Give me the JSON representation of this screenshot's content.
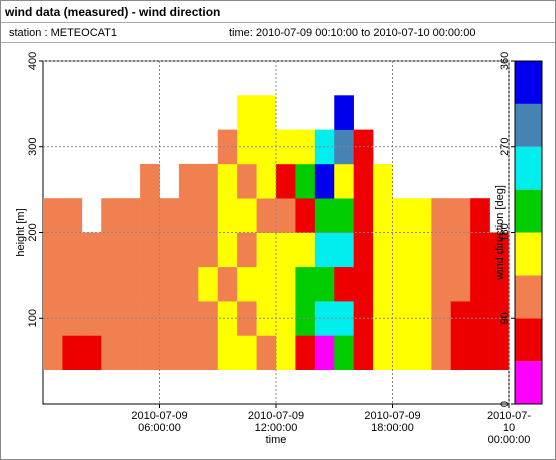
{
  "header": {
    "title": "wind data (measured) - wind direction",
    "station": "station : METEOCAT1",
    "time": "time: 2010-07-09 00:10:00 to 2010-07-10 00:00:00"
  },
  "chart_data": {
    "type": "heatmap",
    "xlabel": "time",
    "ylabel": "height [m]",
    "x": [
      0,
      1,
      2,
      3,
      4,
      5,
      6,
      7,
      8,
      9,
      10,
      11,
      12,
      13,
      14,
      15,
      16,
      17,
      18,
      19,
      20,
      21,
      22,
      23,
      24
    ],
    "heights": [
      40,
      80,
      120,
      160,
      200,
      240,
      280,
      320,
      360
    ],
    "values": [
      [
        100,
        110,
        120,
        115,
        105,
        null,
        null,
        null
      ],
      [
        80,
        115,
        120,
        110,
        100,
        null,
        null,
        null
      ],
      [
        70,
        110,
        115,
        120,
        null,
        null,
        null,
        null
      ],
      [
        110,
        120,
        105,
        115,
        110,
        null,
        null,
        null
      ],
      [
        115,
        110,
        120,
        105,
        110,
        null,
        null,
        null
      ],
      [
        110,
        115,
        120,
        110,
        115,
        125,
        null,
        null
      ],
      [
        120,
        110,
        115,
        125,
        110,
        null,
        null,
        null
      ],
      [
        115,
        120,
        110,
        115,
        120,
        110,
        null,
        null
      ],
      [
        110,
        125,
        140,
        120,
        115,
        130,
        null,
        null
      ],
      [
        150,
        160,
        120,
        155,
        145,
        160,
        130,
        null
      ],
      [
        160,
        120,
        150,
        125,
        160,
        120,
        155,
        140
      ],
      [
        130,
        165,
        150,
        160,
        120,
        165,
        150,
        170
      ],
      [
        160,
        170,
        155,
        165,
        120,
        60,
        160,
        null
      ],
      [
        60,
        200,
        210,
        170,
        60,
        190,
        150,
        null
      ],
      [
        20,
        240,
        200,
        250,
        210,
        330,
        260,
        null
      ],
      [
        220,
        250,
        70,
        240,
        200,
        160,
        300,
        340
      ],
      [
        80,
        60,
        70,
        65,
        75,
        60,
        70,
        null
      ],
      [
        160,
        165,
        170,
        160,
        165,
        150,
        null,
        null
      ],
      [
        165,
        160,
        170,
        150,
        160,
        null,
        null,
        null
      ],
      [
        170,
        160,
        165,
        155,
        160,
        null,
        null,
        null
      ],
      [
        110,
        115,
        120,
        110,
        120,
        null,
        null,
        null
      ],
      [
        70,
        80,
        110,
        115,
        120,
        null,
        null,
        null
      ],
      [
        75,
        70,
        80,
        75,
        85,
        null,
        null,
        null
      ],
      [
        80,
        70,
        75,
        80,
        null,
        null,
        null,
        null
      ]
    ],
    "xlim": [
      0,
      24
    ],
    "xticks": [
      {
        "value": 6,
        "label": "2010-07-09\n06:00:00"
      },
      {
        "value": 12,
        "label": "2010-07-09\n12:00:00"
      },
      {
        "value": 18,
        "label": "2010-07-09\n18:00:00"
      },
      {
        "value": 24,
        "label": "2010-07-10\n00:00:00"
      }
    ],
    "ylim": [
      0,
      400
    ],
    "yticks": [
      100,
      200,
      300,
      400
    ],
    "grid": true,
    "colorbar": {
      "label": "wind direction [deg]",
      "bins": [
        0,
        45,
        90,
        135,
        180,
        225,
        270,
        315,
        360
      ],
      "colors": [
        "#ff00ff",
        "#ee0000",
        "#f08050",
        "#ffff00",
        "#00cc00",
        "#00eeee",
        "#4682b4",
        "#0000ee"
      ],
      "ticks": [
        0,
        90,
        180,
        270,
        360
      ]
    }
  }
}
